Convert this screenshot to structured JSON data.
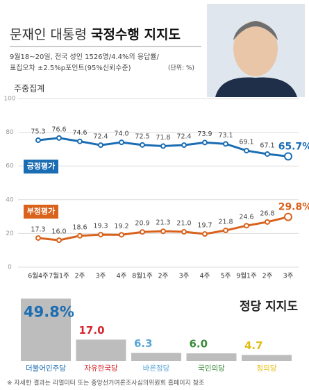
{
  "header": {
    "title": [
      "문재인 대통령",
      "국정수행 지지도"
    ],
    "notes": [
      "9월18~20일, 전국 성인 1526명/4.4%의 응답률/",
      "표집오차 ±2.5%p포인트(95%신뢰수준)"
    ],
    "unit": "(단위: %)"
  },
  "chart_data": [
    {
      "type": "line",
      "y_label": "주중집계",
      "categories": [
        "6월4주",
        "7월1주",
        "2주",
        "3주",
        "4주",
        "8월1주",
        "2주",
        "3주",
        "4주",
        "5주",
        "9월1주",
        "2주",
        "3주"
      ],
      "series": [
        {
          "name": "긍정평가",
          "color": "#1b6db3",
          "values": [
            75.3,
            76.6,
            74.6,
            72.4,
            74.0,
            72.5,
            71.8,
            72.4,
            73.9,
            73.1,
            69.1,
            67.1,
            65.7
          ],
          "value_labels": [
            "75.3",
            "76.6",
            "74.6",
            "72.4",
            "74.0",
            "72.5",
            "71.8",
            "72.4",
            "73.9",
            "73.1",
            "69.1",
            "67.1",
            "65.7%"
          ]
        },
        {
          "name": "부정평가",
          "color": "#d9621c",
          "values": [
            17.3,
            16.0,
            18.6,
            19.3,
            19.2,
            20.9,
            21.3,
            21.0,
            19.7,
            21.8,
            24.6,
            26.8,
            29.8
          ],
          "value_labels": [
            "17.3",
            "16.0",
            "18.6",
            "19.3",
            "19.2",
            "20.9",
            "21.3",
            "21.0",
            "19.7",
            "21.8",
            "24.6",
            "26.8",
            "29.8%"
          ]
        }
      ],
      "ylim": [
        0,
        100
      ],
      "yticks": [
        0,
        20,
        40,
        60,
        80,
        100
      ],
      "grid": true
    },
    {
      "type": "bar",
      "title": "정당 지지도",
      "categories": [
        "더불어민주당",
        "자유한국당",
        "바른정당",
        "국민의당",
        "정의당"
      ],
      "values": [
        49.8,
        17.0,
        6.3,
        6.0,
        4.7
      ],
      "value_labels": [
        "49.8%",
        "17.0",
        "6.3",
        "6.0",
        "4.7"
      ],
      "color": "#bdbdbd",
      "label_colors": [
        "#1b6db3",
        "#d7262e",
        "#5aa6d6",
        "#3a8a3a",
        "#e3bd12"
      ]
    }
  ],
  "footnote": "※ 자세한 결과는 리얼미터 또는 중앙선거여론조사심의위원회 홈페이지 참조"
}
